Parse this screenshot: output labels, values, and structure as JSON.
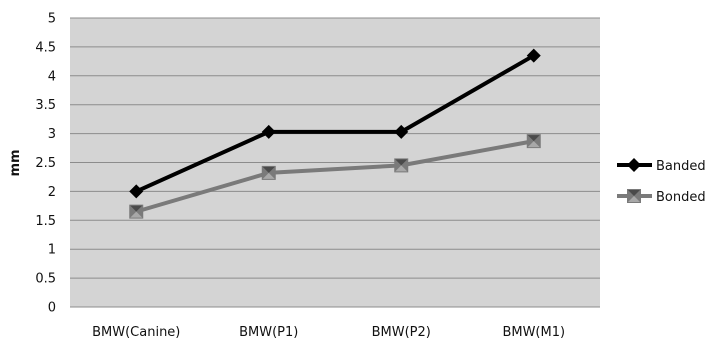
{
  "chart_data": {
    "type": "line",
    "title": "",
    "xlabel": "",
    "ylabel": "mm",
    "ylim": [
      0,
      5
    ],
    "yticks": [
      "0",
      "0.5",
      "1",
      "1.5",
      "2",
      "2.5",
      "3",
      "3.5",
      "4",
      "4.5",
      "5"
    ],
    "categories": [
      "BMW(Canine)",
      "BMW(P1)",
      "BMW(P2)",
      "BMW(M1)"
    ],
    "grid": true,
    "legend_position": "right",
    "series": [
      {
        "name": "Banded",
        "values": [
          2.0,
          3.03,
          3.03,
          4.35
        ],
        "color": "#000000",
        "marker": "diamond"
      },
      {
        "name": "Bonded",
        "values": [
          1.65,
          2.32,
          2.45,
          2.87
        ],
        "color": "#7a7a7a",
        "marker": "hourglass-square"
      }
    ],
    "colors": {
      "plot_background": "#d4d4d4",
      "gridline": "#8c8c8c"
    }
  }
}
